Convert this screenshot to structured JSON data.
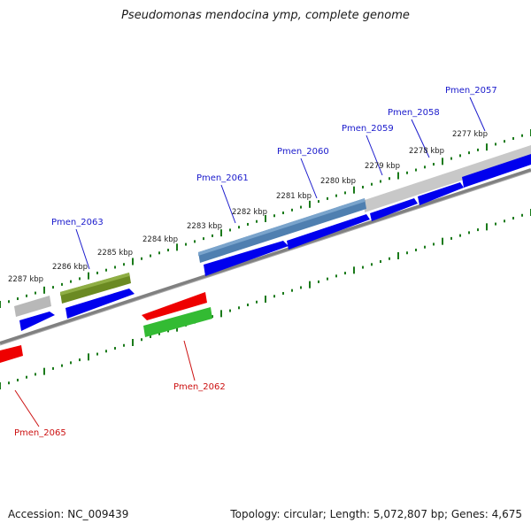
{
  "title": "Pseudomonas mendocina ymp, complete genome",
  "footer": {
    "accession": "Accession: NC_009439",
    "summary": "Topology: circular; Length: 5,072,807 bp; Genes: 4,675"
  },
  "colors": {
    "background": "#ffffff",
    "ruler_tick": "#1a7a1a",
    "backbone": "#808080",
    "forward_gene": "#0000ee",
    "label_forward": "#1a1acc",
    "label_reverse": "#cc1111",
    "highlight_blue": "#4f7fb0",
    "highlight_gray": "#b0b0b0",
    "highlight_olive": "#6b8a22",
    "reverse_red": "#ee0000",
    "reverse_green": "#33bb33"
  },
  "scale_labels": [
    "2287 kbp",
    "2286 kbp",
    "2285 kbp",
    "2284 kbp",
    "2283 kbp",
    "2282 kbp",
    "2281 kbp",
    "2280 kbp",
    "2279 kbp",
    "2278 kbp",
    "2277 kbp"
  ],
  "gene_labels": [
    {
      "text": "Pmen_2057",
      "strand": "forward"
    },
    {
      "text": "Pmen_2058",
      "strand": "forward"
    },
    {
      "text": "Pmen_2059",
      "strand": "forward"
    },
    {
      "text": "Pmen_2060",
      "strand": "forward"
    },
    {
      "text": "Pmen_2061",
      "strand": "forward"
    },
    {
      "text": "Pmen_2063",
      "strand": "forward"
    },
    {
      "text": "Pmen_2062",
      "strand": "reverse"
    },
    {
      "text": "Pmen_2065",
      "strand": "reverse"
    }
  ]
}
